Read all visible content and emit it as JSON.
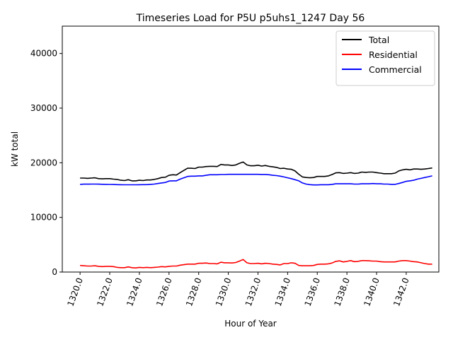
{
  "chart_data": {
    "type": "line",
    "title": "Timeseries Load for P5U p5uhs1_1247  Day 56",
    "xlabel": "Hour of Year",
    "ylabel": "kW total",
    "xlim": [
      1318.8,
      1344.2
    ],
    "ylim": [
      0,
      45000
    ],
    "x_ticks": [
      1320,
      1322,
      1324,
      1326,
      1328,
      1330,
      1332,
      1334,
      1336,
      1338,
      1340,
      1342
    ],
    "x_tick_labels": [
      "1320.0",
      "1322.0",
      "1324.0",
      "1326.0",
      "1328.0",
      "1330.0",
      "1332.0",
      "1334.0",
      "1336.0",
      "1338.0",
      "1340.0",
      "1342.0"
    ],
    "y_ticks": [
      0,
      10000,
      20000,
      30000,
      40000
    ],
    "y_tick_labels": [
      "0",
      "10000",
      "20000",
      "30000",
      "40000"
    ],
    "grid": false,
    "legend_position": "top-right",
    "x": [
      1320.0,
      1320.25,
      1320.5,
      1320.75,
      1321.0,
      1321.25,
      1321.5,
      1321.75,
      1322.0,
      1322.25,
      1322.5,
      1322.75,
      1323.0,
      1323.25,
      1323.5,
      1323.75,
      1324.0,
      1324.25,
      1324.5,
      1324.75,
      1325.0,
      1325.25,
      1325.5,
      1325.75,
      1326.0,
      1326.25,
      1326.5,
      1326.75,
      1327.0,
      1327.25,
      1327.5,
      1327.75,
      1328.0,
      1328.25,
      1328.5,
      1328.75,
      1329.0,
      1329.25,
      1329.5,
      1329.75,
      1330.0,
      1330.25,
      1330.5,
      1330.75,
      1331.0,
      1331.25,
      1331.5,
      1331.75,
      1332.0,
      1332.25,
      1332.5,
      1332.75,
      1333.0,
      1333.25,
      1333.5,
      1333.75,
      1334.0,
      1334.25,
      1334.5,
      1334.75,
      1335.0,
      1335.25,
      1335.5,
      1335.75,
      1336.0,
      1336.25,
      1336.5,
      1336.75,
      1337.0,
      1337.25,
      1337.5,
      1337.75,
      1338.0,
      1338.25,
      1338.5,
      1338.75,
      1339.0,
      1339.25,
      1339.5,
      1339.75,
      1340.0,
      1340.25,
      1340.5,
      1340.75,
      1341.0,
      1341.25,
      1341.5,
      1341.75,
      1342.0,
      1342.25,
      1342.5,
      1342.75,
      1343.0,
      1343.25,
      1343.5,
      1343.75
    ],
    "series": [
      {
        "name": "Total",
        "color": "#000000",
        "values": [
          17200,
          17200,
          17150,
          17200,
          17250,
          17100,
          17050,
          17100,
          17100,
          17000,
          16950,
          16800,
          16750,
          16900,
          16700,
          16700,
          16800,
          16750,
          16850,
          16850,
          16950,
          17100,
          17300,
          17350,
          17700,
          17800,
          17750,
          18200,
          18600,
          19000,
          19000,
          18950,
          19200,
          19200,
          19300,
          19350,
          19350,
          19300,
          19700,
          19600,
          19600,
          19500,
          19600,
          19900,
          20150,
          19600,
          19450,
          19450,
          19550,
          19400,
          19500,
          19350,
          19250,
          19150,
          18950,
          19000,
          18850,
          18800,
          18500,
          17900,
          17400,
          17300,
          17250,
          17300,
          17500,
          17500,
          17500,
          17600,
          17850,
          18150,
          18200,
          18050,
          18100,
          18200,
          18050,
          18100,
          18300,
          18250,
          18300,
          18300,
          18200,
          18100,
          18000,
          18000,
          18000,
          18100,
          18500,
          18700,
          18800,
          18700,
          18850,
          18850,
          18800,
          18850,
          18950,
          19050
        ]
      },
      {
        "name": "Residential",
        "color": "#ff0000",
        "values": [
          1200,
          1150,
          1100,
          1100,
          1150,
          1050,
          1000,
          1050,
          1050,
          1000,
          850,
          800,
          800,
          950,
          800,
          750,
          850,
          800,
          850,
          800,
          850,
          900,
          1000,
          950,
          1050,
          1100,
          1100,
          1250,
          1350,
          1450,
          1450,
          1450,
          1600,
          1600,
          1650,
          1550,
          1550,
          1500,
          1800,
          1700,
          1700,
          1650,
          1750,
          2000,
          2300,
          1700,
          1550,
          1550,
          1600,
          1500,
          1600,
          1550,
          1450,
          1400,
          1300,
          1550,
          1550,
          1700,
          1600,
          1200,
          1150,
          1150,
          1150,
          1200,
          1400,
          1450,
          1450,
          1500,
          1650,
          1950,
          2050,
          1850,
          1950,
          2100,
          1900,
          1950,
          2100,
          2100,
          2050,
          2000,
          2000,
          1900,
          1850,
          1850,
          1850,
          1850,
          2000,
          2100,
          2100,
          2000,
          1900,
          1850,
          1700,
          1550,
          1450,
          1450
        ]
      },
      {
        "name": "Commercial",
        "color": "#0000ff",
        "values": [
          16050,
          16080,
          16090,
          16100,
          16100,
          16080,
          16060,
          16050,
          16040,
          16020,
          16000,
          15980,
          15970,
          15970,
          15970,
          15970,
          15980,
          15990,
          16000,
          16050,
          16100,
          16200,
          16300,
          16400,
          16650,
          16700,
          16700,
          17000,
          17250,
          17500,
          17550,
          17550,
          17600,
          17600,
          17700,
          17800,
          17800,
          17800,
          17850,
          17850,
          17880,
          17880,
          17880,
          17880,
          17880,
          17880,
          17880,
          17880,
          17880,
          17860,
          17860,
          17800,
          17700,
          17650,
          17550,
          17400,
          17250,
          17100,
          16900,
          16700,
          16300,
          16100,
          16000,
          15950,
          15950,
          15980,
          15980,
          15980,
          16050,
          16150,
          16150,
          16150,
          16150,
          16150,
          16100,
          16100,
          16150,
          16150,
          16150,
          16200,
          16150,
          16150,
          16100,
          16100,
          16050,
          16050,
          16200,
          16400,
          16600,
          16700,
          16800,
          17000,
          17150,
          17300,
          17450,
          17600
        ]
      }
    ]
  }
}
